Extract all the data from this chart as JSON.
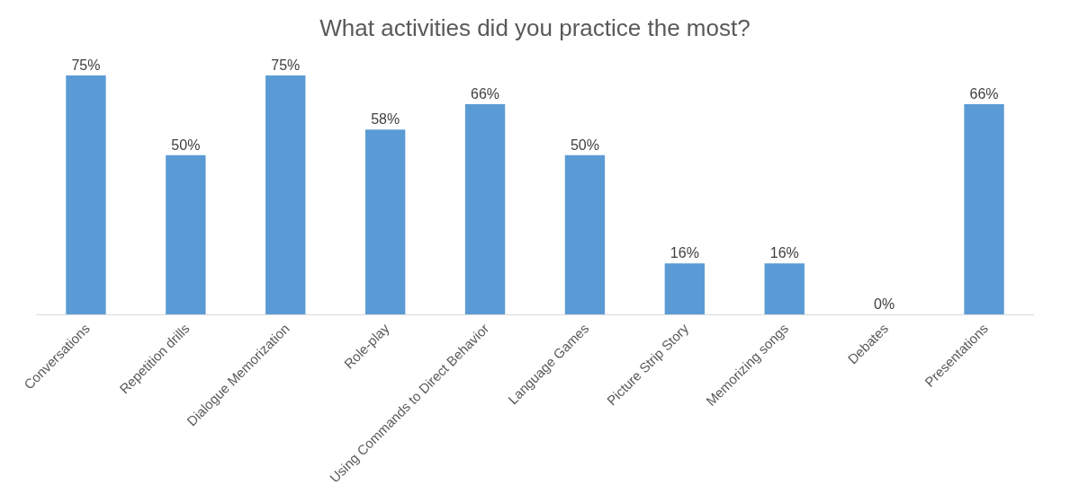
{
  "chart_data": {
    "type": "bar",
    "title": "What activities did you practice the most?",
    "categories": [
      "Conversations",
      "Repetition drills",
      "Dialogue Memorization",
      "Role-play",
      "Using Commands to Direct Behavior",
      "Language Games",
      "Picture Strip Story",
      "Memorizing songs",
      "Debates",
      "Presentations"
    ],
    "values": [
      75,
      50,
      75,
      58,
      66,
      50,
      16,
      16,
      0,
      66
    ],
    "value_labels": [
      "75%",
      "50%",
      "75%",
      "58%",
      "66%",
      "50%",
      "16%",
      "16%",
      "0%",
      "66%"
    ],
    "color": "#5b9bd5",
    "legend": false
  }
}
